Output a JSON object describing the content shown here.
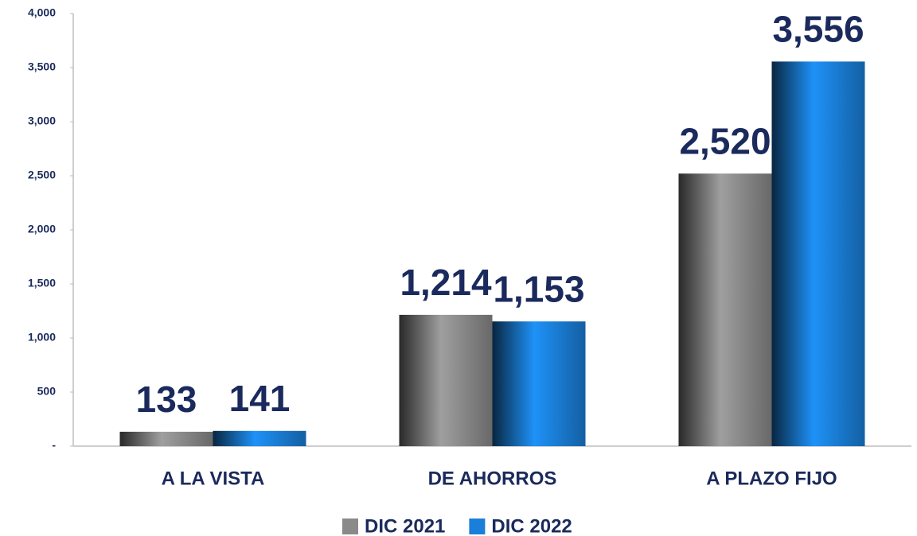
{
  "chart_data": {
    "type": "bar",
    "categories": [
      "A LA VISTA",
      "DE AHORROS",
      "A PLAZO FIJO"
    ],
    "series": [
      {
        "name": "DIC 2021",
        "color": "#8a8a8a",
        "values": [
          133,
          1214,
          2520
        ],
        "value_labels": [
          "133",
          "1,214",
          "2,520"
        ]
      },
      {
        "name": "DIC 2022",
        "color": "#1a7fd8",
        "values": [
          141,
          1153,
          3556
        ],
        "value_labels": [
          "141",
          "1,153",
          "3,556"
        ]
      }
    ],
    "ylim": [
      0,
      4000
    ],
    "yticks": [
      {
        "value": 0,
        "label": "-"
      },
      500,
      {
        "value": 1000,
        "label": "1,000"
      },
      {
        "value": 1500,
        "label": "1,500"
      },
      {
        "value": 2000,
        "label": "2,000"
      },
      {
        "value": 2500,
        "label": "2,500"
      },
      {
        "value": 3000,
        "label": "3,000"
      },
      {
        "value": 3500,
        "label": "3,500"
      },
      {
        "value": 4000,
        "label": "4,000"
      }
    ],
    "grid": false,
    "legend": "bottom"
  }
}
